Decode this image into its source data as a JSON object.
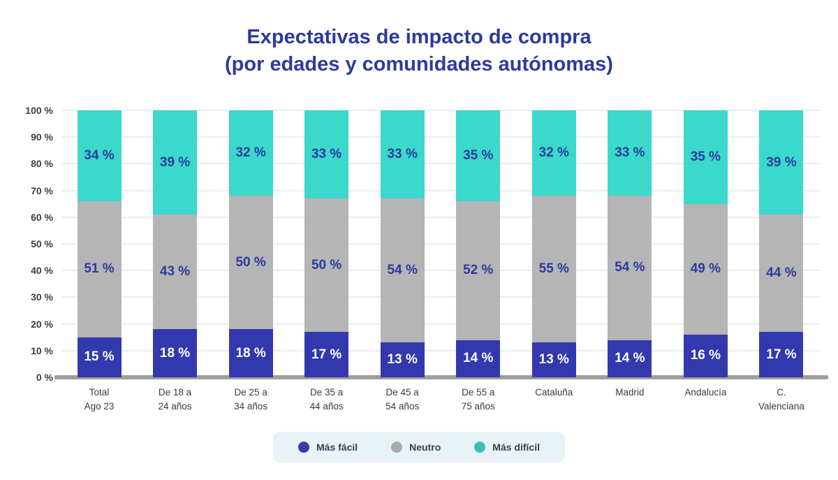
{
  "title": {
    "line1": "Expectativas de impacto de compra",
    "line2": "(por edades y comunidades autónomas)"
  },
  "chart_data": {
    "type": "bar",
    "stacked": true,
    "orientation": "vertical",
    "title": "Expectativas de impacto de compra (por edades y comunidades autónomas)",
    "value_suffix": " %",
    "categories": [
      {
        "line1": "Total",
        "line2": "Ago 23"
      },
      {
        "line1": "De 18 a",
        "line2": "24 años"
      },
      {
        "line1": "De 25 a",
        "line2": "34 años"
      },
      {
        "line1": "De 35 a",
        "line2": "44 años"
      },
      {
        "line1": "De 45 a",
        "line2": "54 años"
      },
      {
        "line1": "De 55 a",
        "line2": "75 años"
      },
      {
        "line1": "Cataluña",
        "line2": ""
      },
      {
        "line1": "Madrid",
        "line2": ""
      },
      {
        "line1": "Andalucía",
        "line2": ""
      },
      {
        "line1": "C.",
        "line2": "Valenciana"
      }
    ],
    "series": [
      {
        "name": "Más fácil",
        "color": "#3238AE",
        "label_color": "#FFFFFF",
        "values": [
          15,
          18,
          18,
          17,
          13,
          14,
          13,
          14,
          16,
          17
        ]
      },
      {
        "name": "Neutro",
        "color": "#B5B5B5",
        "label_color": "#2B3A9E",
        "values": [
          51,
          43,
          50,
          50,
          54,
          52,
          55,
          54,
          49,
          44
        ]
      },
      {
        "name": "Más difícil",
        "color": "#3BD8CC",
        "label_color": "#2B3A9E",
        "values": [
          34,
          39,
          32,
          33,
          33,
          35,
          32,
          33,
          35,
          39
        ]
      }
    ],
    "y_axis": {
      "min": 0,
      "max": 100,
      "step": 10,
      "grid": true,
      "ticks": [
        "0 %",
        "10 %",
        "20 %",
        "30 %",
        "40 %",
        "50 %",
        "60 %",
        "70 %",
        "80 %",
        "90 %",
        "100 %"
      ]
    },
    "legend": {
      "position": "bottom",
      "items": [
        {
          "label": "Más fácil",
          "color": "#333DA8"
        },
        {
          "label": "Neutro",
          "color": "#ABABAB"
        },
        {
          "label": "Más difícil",
          "color": "#38BFBA"
        }
      ]
    }
  },
  "colors": {
    "title": "#2B3A9E",
    "gridline": "#ECECEC",
    "baseline": "#9E9E9E",
    "axis_text": "#3D3D3D",
    "legend_bg": "#E9F2F6",
    "legend_text": "#3C3C4E"
  }
}
